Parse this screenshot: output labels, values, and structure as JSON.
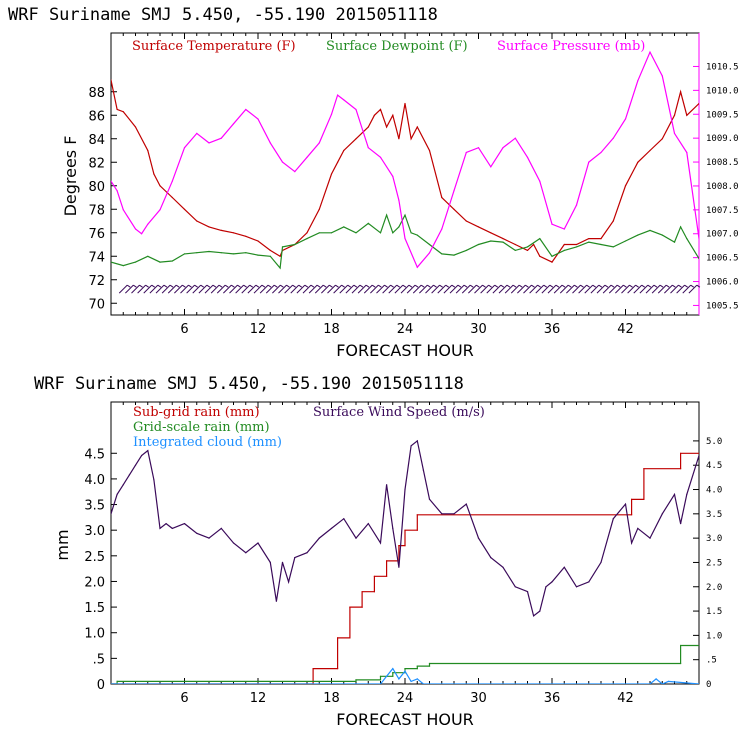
{
  "chart_data": [
    {
      "type": "line",
      "title": "WRF   Suriname SMJ   5.450, -55.190  2015051118",
      "xlabel": "FORECAST HOUR",
      "ylabel": "Degrees F",
      "xlim": [
        0,
        48
      ],
      "ylim": [
        69,
        93
      ],
      "x_ticks": [
        6,
        12,
        18,
        24,
        30,
        36,
        42
      ],
      "y_ticks": [
        70,
        72,
        74,
        76,
        78,
        80,
        82,
        84,
        86,
        88
      ],
      "right_axis": {
        "ylim": [
          1005.3,
          1011.2
        ],
        "ticks": [
          "1005.5",
          "1006.0",
          "1006.5",
          "1007.0",
          "1007.5",
          "1008.0",
          "1008.5",
          "1009.0",
          "1009.5",
          "1010.0",
          "1010.5"
        ],
        "color": "#ff00ff"
      },
      "legend": [
        {
          "label": "Surface Temperature (F)",
          "color": "#c00000"
        },
        {
          "label": "Surface Dewpoint (F)",
          "color": "#228b22"
        },
        {
          "label": "Surface Pressure (mb)",
          "color": "#ff00ff"
        }
      ],
      "series": [
        {
          "name": "Surface Temperature (F)",
          "color": "#c00000",
          "axis": "left",
          "x": [
            0,
            0.5,
            1,
            2,
            3,
            3.5,
            4,
            5,
            6,
            7,
            8,
            9,
            10,
            11,
            12,
            13,
            13.8,
            14,
            15,
            16,
            17,
            18,
            18.5,
            19,
            20,
            21,
            21.5,
            22,
            22.5,
            23,
            23.5,
            24,
            24.5,
            25,
            26,
            27,
            28,
            29,
            30,
            31,
            32,
            33,
            34,
            34.5,
            35,
            36,
            37,
            38,
            39,
            40,
            41,
            42,
            43,
            44,
            45,
            46,
            46.5,
            47,
            48
          ],
          "y": [
            89,
            86.5,
            86.3,
            85,
            83,
            81,
            80,
            79,
            78,
            77,
            76.5,
            76.2,
            76,
            75.7,
            75.3,
            74.5,
            74,
            74.5,
            75,
            76,
            78,
            81,
            82,
            83,
            84,
            85,
            86,
            86.5,
            85,
            86,
            84,
            87,
            84,
            85,
            83,
            79,
            78,
            77,
            76.5,
            76,
            75.5,
            75,
            74.5,
            75,
            74,
            73.5,
            75,
            75,
            75.5,
            75.5,
            77,
            80,
            82,
            83,
            84,
            86,
            88,
            86,
            87
          ]
        },
        {
          "name": "Surface Dewpoint (F)",
          "color": "#228b22",
          "axis": "left",
          "x": [
            0,
            1,
            2,
            3,
            4,
            5,
            6,
            7,
            8,
            9,
            10,
            11,
            12,
            13,
            13.8,
            14,
            15,
            16,
            17,
            18,
            19,
            20,
            21,
            22,
            22.5,
            23,
            23.5,
            24,
            24.5,
            25,
            26,
            27,
            28,
            29,
            30,
            31,
            32,
            33,
            34,
            35,
            36,
            37,
            38,
            39,
            40,
            41,
            42,
            43,
            44,
            45,
            46,
            46.5,
            47,
            48
          ],
          "y": [
            73.5,
            73.2,
            73.5,
            74,
            73.5,
            73.6,
            74.2,
            74.3,
            74.4,
            74.3,
            74.2,
            74.3,
            74.1,
            74,
            73,
            74.8,
            75,
            75.5,
            76,
            76,
            76.5,
            76,
            76.8,
            76,
            77.5,
            76,
            76.5,
            77.5,
            76,
            75.8,
            75,
            74.2,
            74.1,
            74.5,
            75,
            75.3,
            75.2,
            74.5,
            74.8,
            75.5,
            74,
            74.5,
            74.8,
            75.2,
            75,
            74.8,
            75.3,
            75.8,
            76.2,
            75.8,
            75.2,
            76.5,
            75.5,
            73.8
          ]
        },
        {
          "name": "Surface Pressure (mb)",
          "color": "#ff00ff",
          "axis": "right",
          "x": [
            0,
            0.5,
            1,
            2,
            2.5,
            3,
            4,
            5,
            6,
            7,
            8,
            9,
            10,
            11,
            12,
            13,
            14,
            15,
            16,
            17,
            18,
            18.5,
            19,
            20,
            21,
            22,
            23,
            23.5,
            24,
            25,
            26,
            27,
            28,
            29,
            30,
            31,
            32,
            33,
            34,
            35,
            36,
            37,
            38,
            39,
            40,
            41,
            42,
            43,
            44,
            45,
            46,
            47,
            48
          ],
          "y": [
            1008.1,
            1007.9,
            1007.5,
            1007.1,
            1007.0,
            1007.2,
            1007.5,
            1008.1,
            1008.8,
            1009.1,
            1008.9,
            1009.0,
            1009.3,
            1009.6,
            1009.4,
            1008.9,
            1008.5,
            1008.3,
            1008.6,
            1008.9,
            1009.5,
            1009.9,
            1009.8,
            1009.6,
            1008.8,
            1008.6,
            1008.2,
            1007.7,
            1006.9,
            1006.3,
            1006.6,
            1007.1,
            1007.9,
            1008.7,
            1008.8,
            1008.4,
            1008.8,
            1009.0,
            1008.6,
            1008.1,
            1007.2,
            1007.1,
            1007.6,
            1008.5,
            1008.7,
            1009.0,
            1009.4,
            1010.2,
            1010.8,
            1010.3,
            1009.1,
            1008.7,
            1006.9
          ]
        }
      ]
    },
    {
      "type": "line",
      "title": "WRF   Suriname SMJ   5.450, -55.190  2015051118",
      "xlabel": "FORECAST HOUR",
      "ylabel": "mm",
      "xlim": [
        0,
        48
      ],
      "ylim": [
        0,
        5.5
      ],
      "x_ticks": [
        6,
        12,
        18,
        24,
        30,
        36,
        42
      ],
      "y_ticks": [
        0,
        0.5,
        1.0,
        1.5,
        2.0,
        2.5,
        3.0,
        3.5,
        4.0,
        4.5
      ],
      "y_tick_labels": [
        "0",
        ".5",
        "1.0",
        "1.5",
        "2.0",
        "2.5",
        "3.0",
        "3.5",
        "4.0",
        "4.5"
      ],
      "right_axis": {
        "ylim": [
          0,
          5.8
        ],
        "ticks": [
          "0",
          ".5",
          "1.0",
          "1.5",
          "2.0",
          "2.5",
          "3.0",
          "3.5",
          "4.0",
          "4.5",
          "5.0"
        ]
      },
      "legend": [
        {
          "label": "Sub-grid rain (mm)",
          "color": "#c00000"
        },
        {
          "label": "Surface Wind Speed (m/s)",
          "color": "#3a0a5a"
        },
        {
          "label": "Grid-scale rain (mm)",
          "color": "#228b22"
        },
        {
          "label": "Integrated cloud (mm)",
          "color": "#1e90ff"
        }
      ],
      "series": [
        {
          "name": "Sub-grid rain (mm)",
          "color": "#c00000",
          "axis": "left",
          "step": true,
          "x": [
            0,
            16.5,
            16.5,
            18.5,
            18.5,
            19.5,
            19.5,
            20.5,
            20.5,
            21.5,
            21.5,
            22.5,
            22.5,
            23.5,
            23.5,
            24,
            24,
            25,
            25,
            42.5,
            42.5,
            43.5,
            43.5,
            46.5,
            46.5,
            48
          ],
          "y": [
            0,
            0,
            0.3,
            0.3,
            0.9,
            0.9,
            1.5,
            1.5,
            1.8,
            1.8,
            2.1,
            2.1,
            2.4,
            2.4,
            2.7,
            2.7,
            3.0,
            3.0,
            3.3,
            3.3,
            3.6,
            3.6,
            4.2,
            4.2,
            4.5,
            4.5
          ]
        },
        {
          "name": "Grid-scale rain (mm)",
          "color": "#228b22",
          "axis": "left",
          "step": true,
          "x": [
            0,
            0.5,
            0.5,
            20,
            20,
            22,
            22,
            23,
            23,
            24,
            24,
            25,
            25,
            26,
            26,
            46.5,
            46.5,
            48
          ],
          "y": [
            0,
            0,
            0.05,
            0.05,
            0.08,
            0.08,
            0.15,
            0.15,
            0.22,
            0.22,
            0.3,
            0.3,
            0.35,
            0.35,
            0.4,
            0.4,
            0.75,
            0.75
          ]
        },
        {
          "name": "Integrated cloud (mm)",
          "color": "#1e90ff",
          "axis": "left",
          "x": [
            0,
            22,
            22.5,
            23,
            23.5,
            24,
            24.5,
            25,
            25.5,
            26,
            44,
            44.5,
            45,
            45.5,
            48
          ],
          "y": [
            0,
            0,
            0.15,
            0.3,
            0.1,
            0.25,
            0.05,
            0.1,
            0,
            0,
            0,
            0.1,
            0,
            0.05,
            0
          ]
        },
        {
          "name": "Surface Wind Speed (m/s)",
          "color": "#3a0a5a",
          "axis": "right",
          "x": [
            0,
            0.5,
            1,
            1.5,
            2,
            2.5,
            3,
            3.5,
            4,
            4.5,
            5,
            6,
            7,
            8,
            9,
            10,
            11,
            12,
            13,
            13.5,
            14,
            14.5,
            15,
            16,
            17,
            18,
            19,
            20,
            21,
            22,
            22.5,
            23,
            23.5,
            24,
            24.5,
            25,
            25.5,
            26,
            27,
            28,
            29,
            30,
            31,
            32,
            33,
            34,
            34.5,
            35,
            35.5,
            36,
            37,
            38,
            39,
            40,
            41,
            42,
            42.5,
            43,
            44,
            45,
            46,
            46.5,
            47,
            48
          ],
          "y": [
            3.5,
            3.9,
            4.1,
            4.3,
            4.5,
            4.7,
            4.8,
            4.2,
            3.2,
            3.3,
            3.2,
            3.3,
            3.1,
            3.0,
            3.2,
            2.9,
            2.7,
            2.9,
            2.5,
            1.7,
            2.5,
            2.1,
            2.6,
            2.7,
            3.0,
            3.2,
            3.4,
            3.0,
            3.3,
            2.9,
            4.1,
            3.2,
            2.4,
            4.0,
            4.9,
            5.0,
            4.4,
            3.8,
            3.5,
            3.5,
            3.7,
            3.0,
            2.6,
            2.4,
            2.0,
            1.9,
            1.4,
            1.5,
            2.0,
            2.1,
            2.4,
            2.0,
            2.1,
            2.5,
            3.4,
            3.7,
            2.9,
            3.2,
            3.0,
            3.5,
            3.9,
            3.3,
            3.9,
            4.7
          ]
        }
      ]
    }
  ],
  "wind_barbs": {
    "color": "#3a0a5a",
    "axis": "left",
    "y": 71.2
  }
}
